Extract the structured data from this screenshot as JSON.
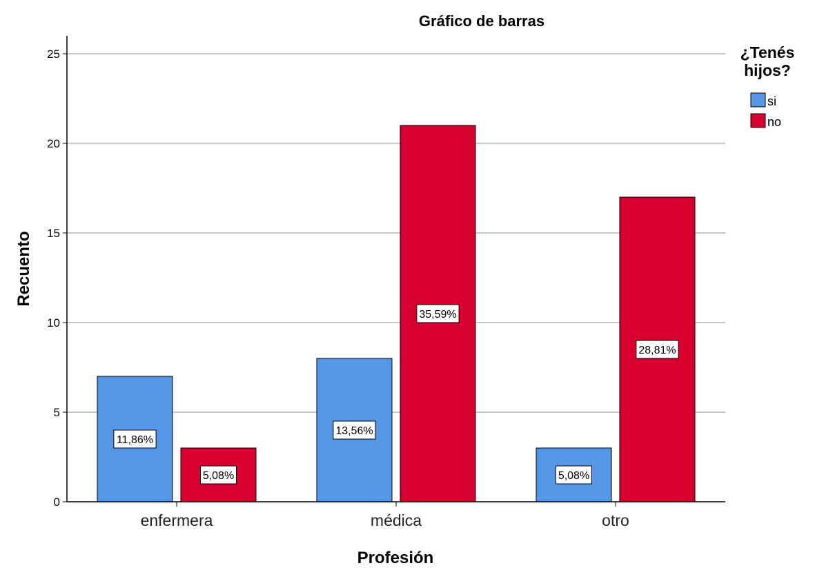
{
  "chart_data": {
    "type": "bar",
    "title": "Gráfico de barras",
    "xlabel": "Profesión",
    "ylabel": "Recuento",
    "categories": [
      "enfermera",
      "médica",
      "otro"
    ],
    "ylim": [
      0,
      26
    ],
    "yticks": [
      0,
      5,
      10,
      15,
      20,
      25
    ],
    "grid": true,
    "legend": {
      "title_lines": [
        "¿Tenés",
        "hijos?"
      ],
      "placement": "top-right"
    },
    "series": [
      {
        "name": "si",
        "color": "#5597E6",
        "values": [
          7,
          8,
          3
        ],
        "labels": [
          "11,86%",
          "13,56%",
          "5,08%"
        ]
      },
      {
        "name": "no",
        "color": "#D7002E",
        "values": [
          3,
          21,
          17
        ],
        "labels": [
          "5,08%",
          "35,59%",
          "28,81%"
        ]
      }
    ]
  }
}
